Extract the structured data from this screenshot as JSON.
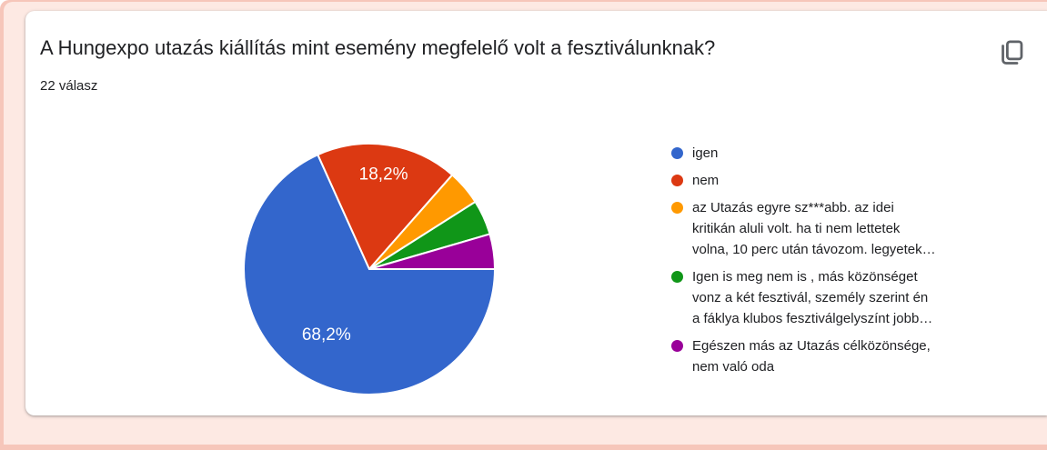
{
  "header": {
    "title": "A Hungexpo utazás kiállítás mint esemény megfelelő volt a fesztiválunknak?",
    "responses_label": "22 válasz"
  },
  "toolbar": {
    "copy_icon": "content-copy"
  },
  "colors": {
    "frame": "#f6c6ba",
    "background": "#fde9e3",
    "card": "#ffffff",
    "title": "#202124",
    "text": "#202124",
    "icon": "#5f6368"
  },
  "chart_data": {
    "type": "pie",
    "title": "A Hungexpo utazás kiállítás mint esemény megfelelő volt a fesztiválunknak?",
    "subtitle": "22 válasz",
    "legend_position": "right",
    "start_angle_deg": 90,
    "direction": "clockwise",
    "slices": [
      {
        "label": "igen",
        "label_lines": [
          "igen"
        ],
        "percent": 68.2,
        "percent_display": "68,2%",
        "color": "#3366cc"
      },
      {
        "label": "nem",
        "label_lines": [
          "nem"
        ],
        "percent": 18.2,
        "percent_display": "18,2%",
        "color": "#dc3912"
      },
      {
        "label": "az Utazás egyre sz***abb. az idei kritikán aluli volt. ha ti nem lettetek volna, 10 perc után távozom. legyetek…",
        "label_lines": [
          "az Utazás egyre sz***abb. az idei",
          "kritikán aluli volt. ha ti nem lettetek",
          "volna, 10 perc után távozom. legyetek…"
        ],
        "percent": 4.5,
        "percent_display": "",
        "color": "#ff9900"
      },
      {
        "label": "Igen is meg nem is , más közönséget vonz a két fesztivál, személy szerint én a fáklya klubos fesztiválgelyszínt jobb…",
        "label_lines": [
          "Igen is meg nem is , más közönséget",
          "vonz a két fesztivál, személy szerint én",
          "a fáklya klubos fesztiválgelyszínt jobb…"
        ],
        "percent": 4.5,
        "percent_display": "",
        "color": "#109618"
      },
      {
        "label": "Egészen más az Utazás célközönsége, nem való oda",
        "label_lines": [
          "Egészen más az Utazás célközönsége,",
          "nem való oda"
        ],
        "percent": 4.5,
        "percent_display": "",
        "color": "#990099"
      }
    ]
  }
}
